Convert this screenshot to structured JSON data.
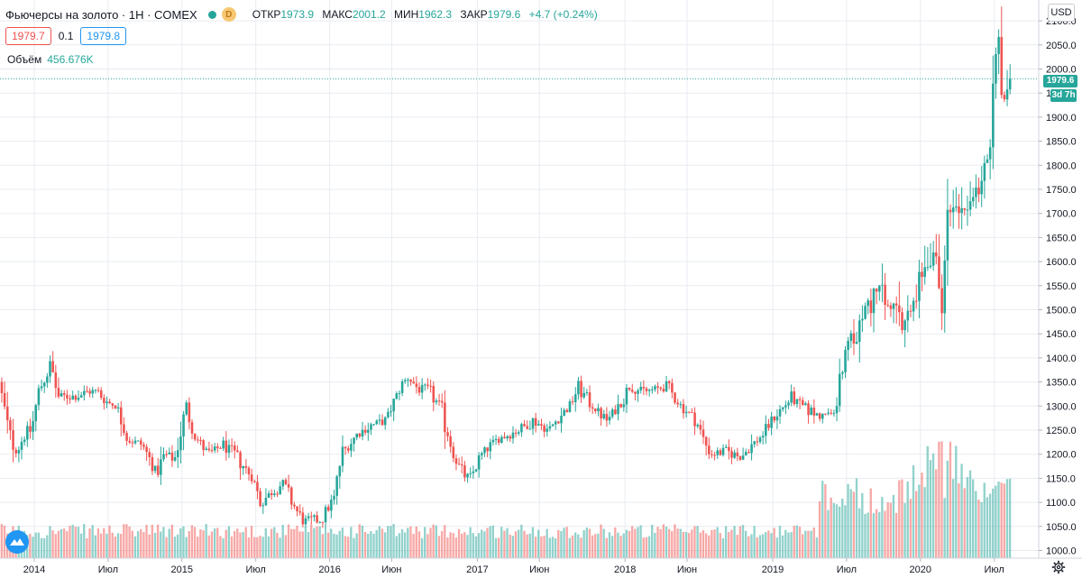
{
  "header": {
    "symbol": "Фьючерсы на золото · 1Н · COMEX",
    "badge": "D",
    "ohlc": {
      "open_label": "ОТКР",
      "open": "1973.9",
      "high_label": "МАКС",
      "high": "2001.2",
      "low_label": "МИН",
      "low": "1962.3",
      "close_label": "ЗАКР",
      "close": "1979.6",
      "change": "+4.7 (+0.24%)"
    },
    "bid": "1979.7",
    "spread": "0.1",
    "ask": "1979.8",
    "volume_label": "Объём",
    "volume": "456.676K"
  },
  "price_axis": {
    "currency": "USD",
    "last_price": "1979.6",
    "countdown": "3d 7h"
  },
  "colors": {
    "up": "#26a69a",
    "down": "#ef5350",
    "grid": "#e8ebf1",
    "axis_text": "#131722"
  },
  "chart_data": {
    "type": "candlestick",
    "title": "Фьючерсы на золото · 1Н · COMEX",
    "interval": "1 week",
    "y_axis": {
      "range": [
        990,
        2100
      ],
      "ticks": [
        1000,
        1050,
        1100,
        1150,
        1200,
        1250,
        1300,
        1350,
        1400,
        1450,
        1500,
        1550,
        1600,
        1650,
        1700,
        1750,
        1800,
        1850,
        1900,
        1950,
        2000,
        2050,
        2100
      ]
    },
    "x_axis": {
      "ticks": [
        {
          "label": "2014",
          "t": 0
        },
        {
          "label": "Июл",
          "t": 0.5
        },
        {
          "label": "2015",
          "t": 1
        },
        {
          "label": "Июл",
          "t": 1.5
        },
        {
          "label": "2016",
          "t": 2
        },
        {
          "label": "Июн",
          "t": 2.42
        },
        {
          "label": "2017",
          "t": 3
        },
        {
          "label": "Июн",
          "t": 3.42
        },
        {
          "label": "2018",
          "t": 4
        },
        {
          "label": "Июн",
          "t": 4.42
        },
        {
          "label": "2019",
          "t": 5
        },
        {
          "label": "Июл",
          "t": 5.5
        },
        {
          "label": "2020",
          "t": 6
        },
        {
          "label": "Июл",
          "t": 6.5
        }
      ]
    },
    "last_close": 1979.6,
    "price_path": [
      [
        -0.22,
        1350
      ],
      [
        -0.15,
        1240
      ],
      [
        -0.1,
        1205
      ],
      [
        -0.05,
        1240
      ],
      [
        0.0,
        1250
      ],
      [
        0.05,
        1330
      ],
      [
        0.13,
        1385
      ],
      [
        0.18,
        1320
      ],
      [
        0.3,
        1320
      ],
      [
        0.38,
        1330
      ],
      [
        0.45,
        1330
      ],
      [
        0.5,
        1310
      ],
      [
        0.58,
        1300
      ],
      [
        0.65,
        1230
      ],
      [
        0.75,
        1220
      ],
      [
        0.85,
        1160
      ],
      [
        0.9,
        1200
      ],
      [
        0.97,
        1190
      ],
      [
        1.05,
        1300
      ],
      [
        1.1,
        1240
      ],
      [
        1.2,
        1200
      ],
      [
        1.3,
        1220
      ],
      [
        1.4,
        1190
      ],
      [
        1.5,
        1150
      ],
      [
        1.55,
        1100
      ],
      [
        1.7,
        1140
      ],
      [
        1.8,
        1080
      ],
      [
        1.85,
        1060
      ],
      [
        1.97,
        1065
      ],
      [
        2.05,
        1110
      ],
      [
        2.1,
        1200
      ],
      [
        2.2,
        1240
      ],
      [
        2.3,
        1260
      ],
      [
        2.4,
        1270
      ],
      [
        2.5,
        1340
      ],
      [
        2.55,
        1360
      ],
      [
        2.62,
        1335
      ],
      [
        2.7,
        1330
      ],
      [
        2.78,
        1290
      ],
      [
        2.82,
        1240
      ],
      [
        2.87,
        1190
      ],
      [
        2.92,
        1160
      ],
      [
        2.97,
        1150
      ],
      [
        3.05,
        1200
      ],
      [
        3.15,
        1230
      ],
      [
        3.3,
        1250
      ],
      [
        3.4,
        1270
      ],
      [
        3.5,
        1250
      ],
      [
        3.58,
        1280
      ],
      [
        3.65,
        1300
      ],
      [
        3.7,
        1340
      ],
      [
        3.8,
        1300
      ],
      [
        3.9,
        1270
      ],
      [
        4.0,
        1310
      ],
      [
        4.05,
        1340
      ],
      [
        4.15,
        1330
      ],
      [
        4.3,
        1340
      ],
      [
        4.4,
        1300
      ],
      [
        4.5,
        1270
      ],
      [
        4.55,
        1230
      ],
      [
        4.6,
        1200
      ],
      [
        4.7,
        1205
      ],
      [
        4.8,
        1195
      ],
      [
        4.85,
        1210
      ],
      [
        4.95,
        1240
      ],
      [
        5.05,
        1285
      ],
      [
        5.1,
        1300
      ],
      [
        5.15,
        1320
      ],
      [
        5.2,
        1300
      ],
      [
        5.35,
        1280
      ],
      [
        5.43,
        1285
      ],
      [
        5.47,
        1340
      ],
      [
        5.52,
        1410
      ],
      [
        5.6,
        1460
      ],
      [
        5.67,
        1510
      ],
      [
        5.72,
        1530
      ],
      [
        5.8,
        1510
      ],
      [
        5.85,
        1490
      ],
      [
        5.9,
        1460
      ],
      [
        5.95,
        1480
      ],
      [
        6.0,
        1560
      ],
      [
        6.05,
        1590
      ],
      [
        6.1,
        1640
      ],
      [
        6.15,
        1560
      ],
      [
        6.17,
        1480
      ],
      [
        6.2,
        1680
      ],
      [
        6.25,
        1735
      ],
      [
        6.32,
        1720
      ],
      [
        6.4,
        1730
      ],
      [
        6.45,
        1780
      ],
      [
        6.48,
        1810
      ],
      [
        6.5,
        1890
      ],
      [
        6.52,
        1975
      ],
      [
        6.55,
        2050
      ],
      [
        6.57,
        1960
      ],
      [
        6.6,
        1940
      ],
      [
        6.62,
        1980
      ]
    ]
  }
}
